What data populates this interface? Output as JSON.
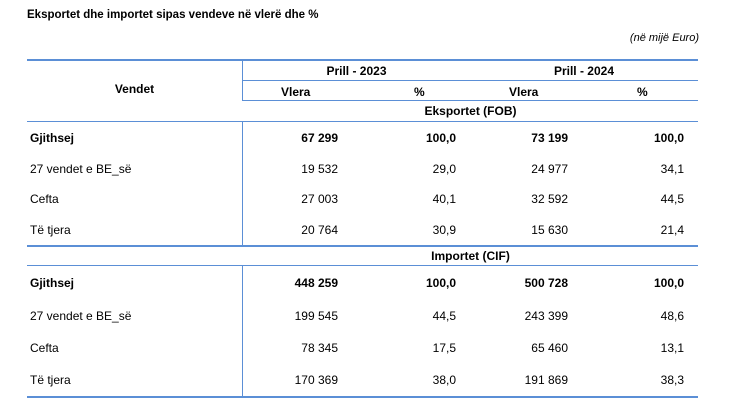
{
  "title": "Eksportet dhe importet sipas vendeve në vlerë dhe %",
  "unit_note": "(në mijë Euro)",
  "header": {
    "col_label": "Vendet",
    "period1": "Prill - 2023",
    "period2": "Prill - 2024",
    "value_label": "Vlera",
    "pct_label": "%"
  },
  "sections": [
    {
      "title": "Eksportet (FOB)",
      "rows": [
        {
          "name": "Gjithsej",
          "v1": "67 299",
          "p1": "100,0",
          "v2": "73 199",
          "p2": "100,0"
        },
        {
          "name": "27 vendet e BE_së",
          "v1": "19 532",
          "p1": "29,0",
          "v2": "24 977",
          "p2": "34,1"
        },
        {
          "name": "Cefta",
          "v1": "27 003",
          "p1": "40,1",
          "v2": "32 592",
          "p2": "44,5"
        },
        {
          "name": "Të tjera",
          "v1": "20 764",
          "p1": "30,9",
          "v2": "15 630",
          "p2": "21,4"
        }
      ]
    },
    {
      "title": "Importet (CIF)",
      "rows": [
        {
          "name": "Gjithsej",
          "v1": "448 259",
          "p1": "100,0",
          "v2": "500 728",
          "p2": "100,0"
        },
        {
          "name": "27 vendet e BE_së",
          "v1": "199 545",
          "p1": "44,5",
          "v2": "243 399",
          "p2": "48,6"
        },
        {
          "name": "Cefta",
          "v1": "78 345",
          "p1": "17,5",
          "v2": "65 460",
          "p2": "13,1"
        },
        {
          "name": "Të tjera",
          "v1": "170 369",
          "p1": "38,0",
          "v2": "191 869",
          "p2": "38,3"
        }
      ]
    }
  ]
}
